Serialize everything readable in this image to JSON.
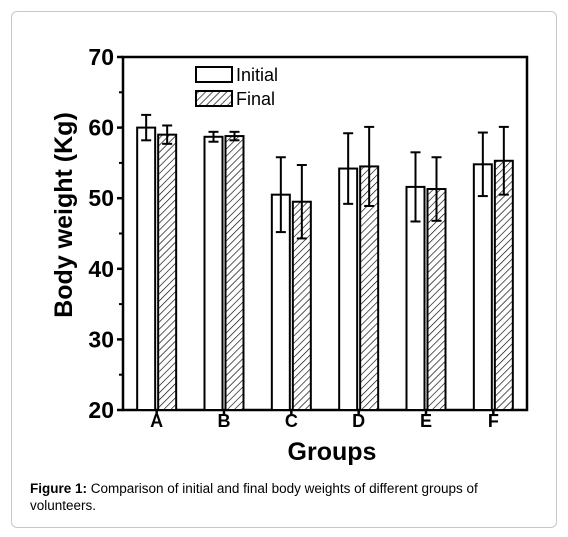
{
  "caption": {
    "label": "Figure 1:",
    "text": " Comparison of initial and final body weights of different groups of volunteers."
  },
  "colors": {
    "initial_fill": "#ffffff",
    "final_hatch": "#000000",
    "axis": "#000000",
    "frame_border": "#c8c8c8"
  },
  "chart_data": {
    "type": "bar",
    "title": "",
    "xlabel": "Groups",
    "ylabel": "Body weight (Kg)",
    "ylim": [
      20,
      70
    ],
    "yticks": [
      "20",
      "30",
      "40",
      "50",
      "60",
      "70"
    ],
    "grid": false,
    "legend_position": "top-left",
    "categories": [
      "A",
      "B",
      "C",
      "D",
      "E",
      "F"
    ],
    "series": [
      {
        "name": "Initial",
        "pattern": "plain",
        "values": [
          60.0,
          58.7,
          50.5,
          54.2,
          51.6,
          54.8
        ],
        "errors": [
          1.8,
          0.7,
          5.3,
          5.0,
          4.9,
          4.5
        ]
      },
      {
        "name": "Final",
        "pattern": "hatched",
        "values": [
          59.0,
          58.8,
          49.5,
          54.5,
          51.3,
          55.3
        ],
        "errors": [
          1.3,
          0.6,
          5.2,
          5.6,
          4.5,
          4.8
        ]
      }
    ]
  }
}
